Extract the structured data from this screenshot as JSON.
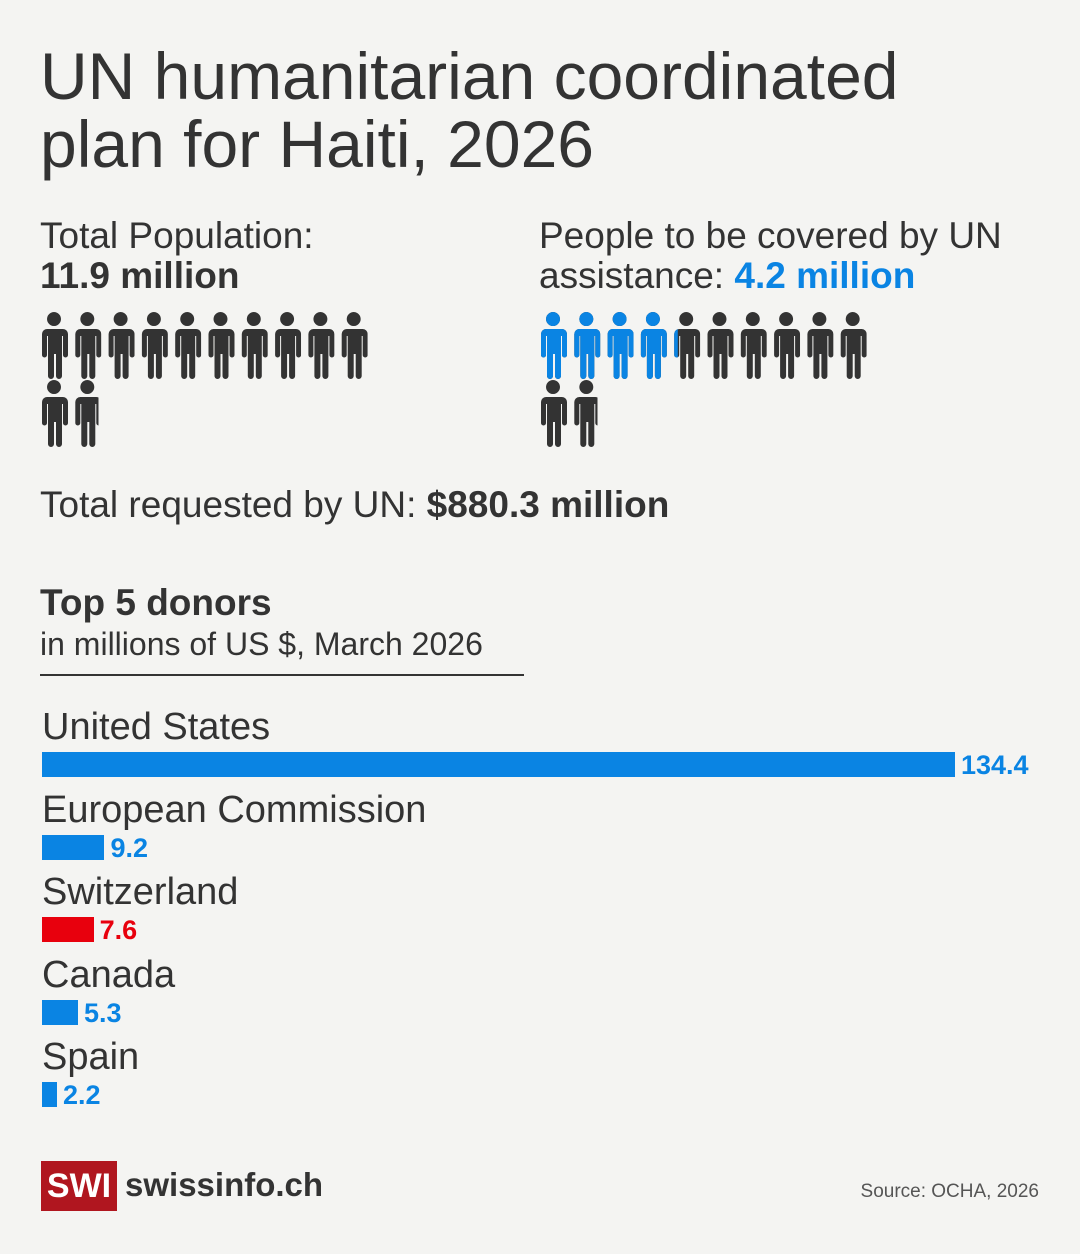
{
  "title": "UN humanitarian coordinated plan for Haiti, 2026",
  "population": {
    "label": "Total Population:",
    "value": "11.9 million",
    "icons_filled": 11.9
  },
  "covered": {
    "label": "People to be covered by UN assistance:",
    "value": "4.2 million",
    "icons_total": 11.9,
    "icons_highlighted": 4.2
  },
  "requested": {
    "label": "Total requested by UN:",
    "value": "$880.3 million"
  },
  "colors": {
    "text": "#333333",
    "blue": "#0a84e3",
    "red": "#e8000d",
    "background": "#f4f4f2",
    "logo": "#b0161f"
  },
  "chart_data": {
    "type": "bar",
    "orientation": "horizontal",
    "title": "Top 5 donors",
    "subtitle": "in millions of US $, March 2026",
    "categories": [
      "United States",
      "European Commission",
      "Switzerland",
      "Canada",
      "Spain"
    ],
    "values": [
      134.4,
      9.2,
      7.6,
      5.3,
      2.2
    ],
    "value_labels": [
      "134.4",
      "9.2",
      "7.6",
      "5.3",
      "2.2"
    ],
    "bar_colors": [
      "#0a84e3",
      "#0a84e3",
      "#e8000d",
      "#0a84e3",
      "#0a84e3"
    ]
  },
  "footer": {
    "logo_mark": "SWI",
    "logo_text": "swissinfo.ch",
    "source": "Source: OCHA, 2026"
  }
}
